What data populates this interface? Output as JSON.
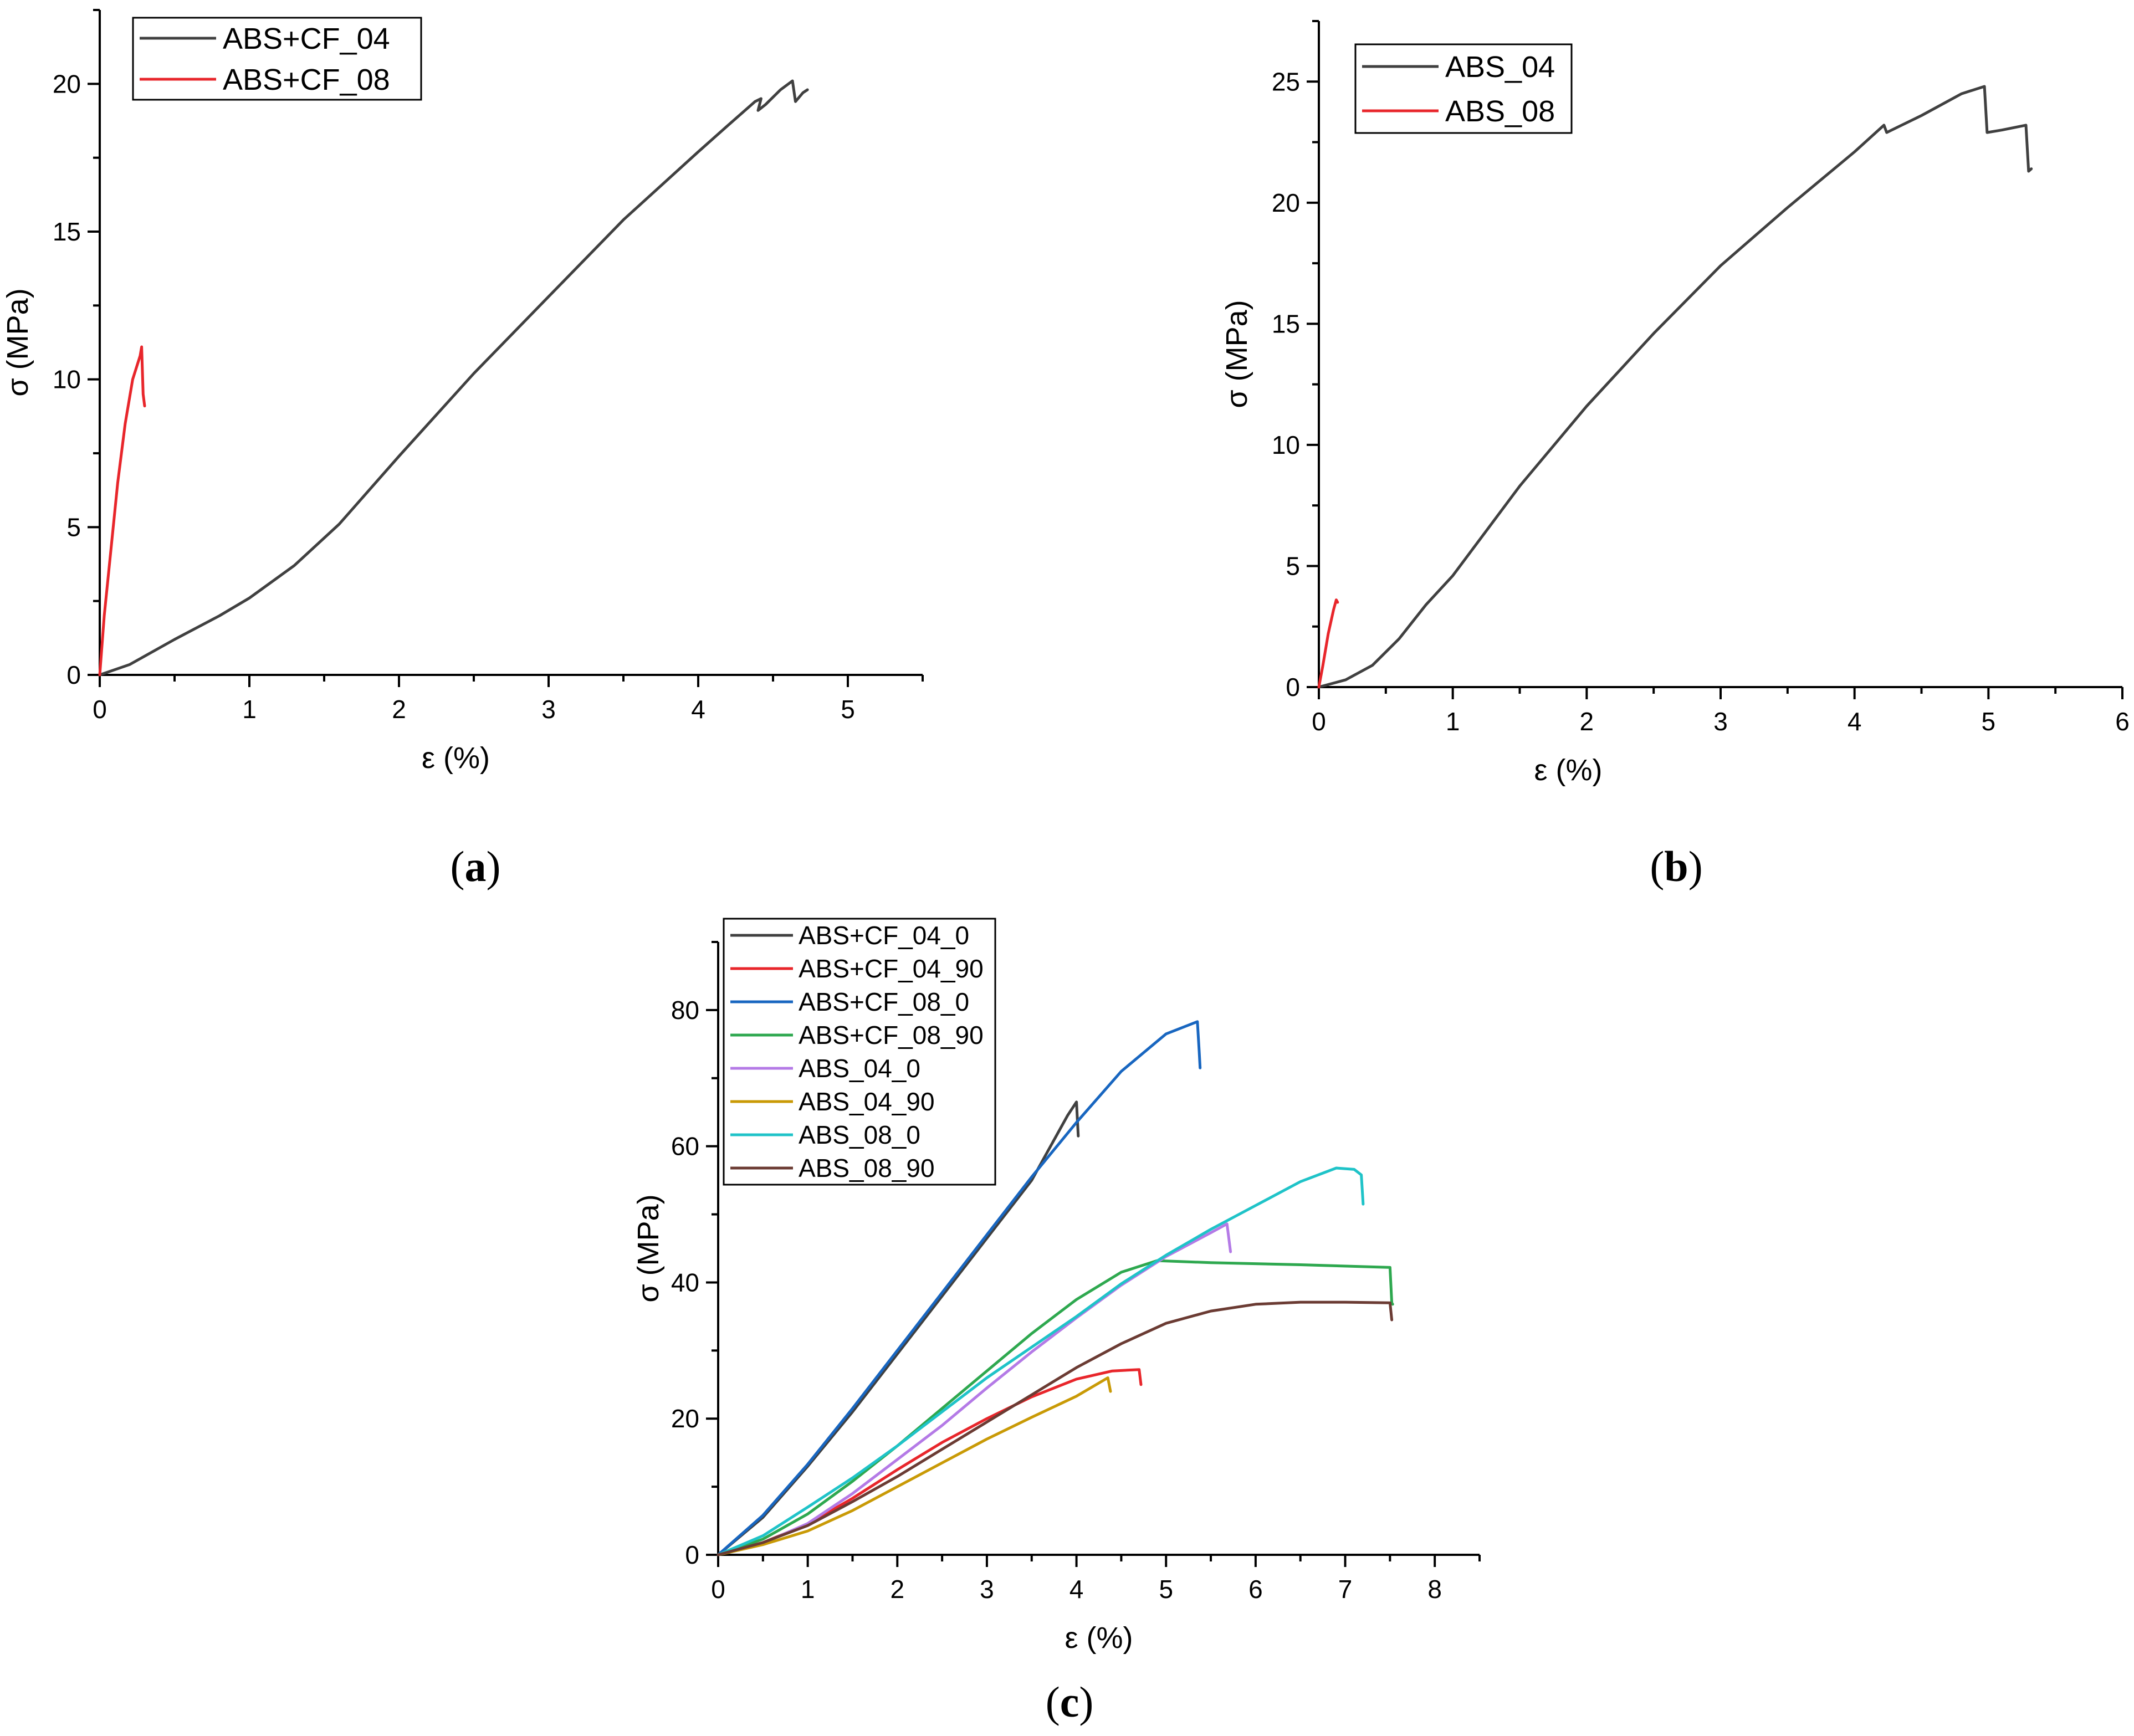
{
  "captions": {
    "a": {
      "open": "(",
      "letter": "a",
      "close": ")"
    },
    "b": {
      "open": "(",
      "letter": "b",
      "close": ")"
    },
    "c": {
      "open": "(",
      "letter": "c",
      "close": ")"
    }
  },
  "colors": {
    "black": "#404040",
    "red": "#e8262b",
    "blue": "#1866c0",
    "green": "#2ea84f",
    "purple": "#b47ae6",
    "gold": "#c99a06",
    "cyan": "#1fc3c8",
    "brown": "#6b3b33"
  },
  "chart_data": [
    {
      "id": "a",
      "type": "line",
      "title": "",
      "xlabel": "ε (%)",
      "ylabel": "σ (MPa)",
      "xlim": [
        0,
        5.5
      ],
      "ylim": [
        0,
        22.5
      ],
      "xticks": [
        0,
        1,
        2,
        3,
        4,
        5
      ],
      "yticks": [
        0,
        5,
        10,
        15,
        20
      ],
      "xtick_labels": [
        "0",
        "1",
        "2",
        "3",
        "4",
        "5"
      ],
      "ytick_labels": [
        "0",
        "5",
        "10",
        "15",
        "20"
      ],
      "legend_position": "top-left",
      "series": [
        {
          "name": "ABS+CF_04",
          "color": "#404040",
          "points": [
            [
              0,
              0
            ],
            [
              0.2,
              0.35
            ],
            [
              0.5,
              1.2
            ],
            [
              0.8,
              2.0
            ],
            [
              1.0,
              2.6
            ],
            [
              1.3,
              3.7
            ],
            [
              1.6,
              5.1
            ],
            [
              2.0,
              7.4
            ],
            [
              2.5,
              10.2
            ],
            [
              3.0,
              12.8
            ],
            [
              3.5,
              15.4
            ],
            [
              4.0,
              17.7
            ],
            [
              4.2,
              18.6
            ],
            [
              4.38,
              19.4
            ],
            [
              4.42,
              19.5
            ],
            [
              4.4,
              19.1
            ],
            [
              4.45,
              19.3
            ],
            [
              4.55,
              19.8
            ],
            [
              4.63,
              20.1
            ],
            [
              4.65,
              19.4
            ],
            [
              4.7,
              19.7
            ],
            [
              4.73,
              19.8
            ]
          ]
        },
        {
          "name": "ABS+CF_08",
          "color": "#e8262b",
          "points": [
            [
              0,
              0
            ],
            [
              0.03,
              2.0
            ],
            [
              0.07,
              4.0
            ],
            [
              0.12,
              6.5
            ],
            [
              0.17,
              8.5
            ],
            [
              0.22,
              10.0
            ],
            [
              0.27,
              10.8
            ],
            [
              0.28,
              11.1
            ],
            [
              0.29,
              9.5
            ],
            [
              0.3,
              9.1
            ]
          ]
        }
      ]
    },
    {
      "id": "b",
      "type": "line",
      "title": "",
      "xlabel": "ε (%)",
      "ylabel": "σ (MPa)",
      "xlim": [
        0,
        6
      ],
      "ylim": [
        0,
        27.5
      ],
      "xticks": [
        0,
        1,
        2,
        3,
        4,
        5,
        6
      ],
      "yticks": [
        0,
        5,
        10,
        15,
        20,
        25
      ],
      "xtick_labels": [
        "0",
        "1",
        "2",
        "3",
        "4",
        "5",
        "6"
      ],
      "ytick_labels": [
        "0",
        "5",
        "10",
        "15",
        "20",
        "25"
      ],
      "legend_position": "top-left",
      "series": [
        {
          "name": "ABS_04",
          "color": "#404040",
          "points": [
            [
              0,
              0
            ],
            [
              0.2,
              0.3
            ],
            [
              0.4,
              0.9
            ],
            [
              0.6,
              2.0
            ],
            [
              0.8,
              3.4
            ],
            [
              1.0,
              4.6
            ],
            [
              1.5,
              8.3
            ],
            [
              2.0,
              11.6
            ],
            [
              2.5,
              14.6
            ],
            [
              3.0,
              17.4
            ],
            [
              3.5,
              19.8
            ],
            [
              4.0,
              22.1
            ],
            [
              4.22,
              23.2
            ],
            [
              4.24,
              22.9
            ],
            [
              4.5,
              23.6
            ],
            [
              4.8,
              24.5
            ],
            [
              4.97,
              24.8
            ],
            [
              4.99,
              22.9
            ],
            [
              5.1,
              23.0
            ],
            [
              5.28,
              23.2
            ],
            [
              5.3,
              21.3
            ],
            [
              5.32,
              21.4
            ]
          ]
        },
        {
          "name": "ABS_08",
          "color": "#e8262b",
          "points": [
            [
              0,
              0
            ],
            [
              0.03,
              0.9
            ],
            [
              0.07,
              2.2
            ],
            [
              0.11,
              3.2
            ],
            [
              0.13,
              3.6
            ],
            [
              0.14,
              3.5
            ]
          ]
        }
      ]
    },
    {
      "id": "c",
      "type": "line",
      "title": "",
      "xlabel": "ε (%)",
      "ylabel": "σ (MPa)",
      "xlim": [
        0,
        8.5
      ],
      "ylim": [
        0,
        90
      ],
      "xticks": [
        0,
        1,
        2,
        3,
        4,
        5,
        6,
        7,
        8
      ],
      "yticks": [
        0,
        20,
        40,
        60,
        80
      ],
      "xtick_labels": [
        "0",
        "1",
        "2",
        "3",
        "4",
        "5",
        "6",
        "7",
        "8"
      ],
      "ytick_labels": [
        "0",
        "20",
        "40",
        "60",
        "80"
      ],
      "legend_position": "top-left",
      "series": [
        {
          "name": "ABS+CF_04_0",
          "color": "#404040",
          "points": [
            [
              0,
              0
            ],
            [
              0.5,
              5.5
            ],
            [
              1,
              13
            ],
            [
              1.5,
              21
            ],
            [
              2,
              29.5
            ],
            [
              2.5,
              38
            ],
            [
              3,
              46.5
            ],
            [
              3.5,
              55
            ],
            [
              3.9,
              64.5
            ],
            [
              4.0,
              66.5
            ],
            [
              4.02,
              61.5
            ]
          ]
        },
        {
          "name": "ABS+CF_04_90",
          "color": "#e8262b",
          "points": [
            [
              0,
              0
            ],
            [
              0.5,
              1.8
            ],
            [
              1,
              4.5
            ],
            [
              1.5,
              8.3
            ],
            [
              2,
              12.5
            ],
            [
              2.5,
              16.5
            ],
            [
              3,
              20
            ],
            [
              3.5,
              23.2
            ],
            [
              4,
              25.8
            ],
            [
              4.4,
              27
            ],
            [
              4.7,
              27.2
            ],
            [
              4.72,
              25.0
            ]
          ]
        },
        {
          "name": "ABS+CF_08_0",
          "color": "#1866c0",
          "points": [
            [
              0,
              0
            ],
            [
              0.5,
              5.8
            ],
            [
              1,
              13.3
            ],
            [
              1.5,
              21.5
            ],
            [
              2,
              30
            ],
            [
              2.5,
              38.5
            ],
            [
              3,
              47
            ],
            [
              3.5,
              55.5
            ],
            [
              4,
              63.5
            ],
            [
              4.5,
              71
            ],
            [
              5,
              76.5
            ],
            [
              5.35,
              78.3
            ],
            [
              5.37,
              74
            ],
            [
              5.38,
              71.5
            ]
          ]
        },
        {
          "name": "ABS+CF_08_90",
          "color": "#2ea84f",
          "points": [
            [
              0,
              0
            ],
            [
              0.5,
              2.3
            ],
            [
              1,
              6
            ],
            [
              1.5,
              10.8
            ],
            [
              2,
              16
            ],
            [
              2.5,
              21.5
            ],
            [
              3,
              27
            ],
            [
              3.5,
              32.5
            ],
            [
              4,
              37.5
            ],
            [
              4.5,
              41.5
            ],
            [
              4.9,
              43.2
            ],
            [
              5.5,
              42.9
            ],
            [
              6.5,
              42.6
            ],
            [
              7.5,
              42.2
            ],
            [
              7.52,
              37.0
            ],
            [
              7.53,
              36.8
            ]
          ]
        },
        {
          "name": "ABS_04_0",
          "color": "#b47ae6",
          "points": [
            [
              0,
              0
            ],
            [
              0.5,
              1.7
            ],
            [
              1,
              4.6
            ],
            [
              1.5,
              9.0
            ],
            [
              2,
              14
            ],
            [
              2.5,
              19
            ],
            [
              3,
              24.5
            ],
            [
              3.5,
              29.8
            ],
            [
              4,
              34.8
            ],
            [
              4.5,
              39.6
            ],
            [
              5,
              43.8
            ],
            [
              5.5,
              47.3
            ],
            [
              5.68,
              48.6
            ],
            [
              5.72,
              44.5
            ]
          ]
        },
        {
          "name": "ABS_04_90",
          "color": "#c99a06",
          "points": [
            [
              0,
              0
            ],
            [
              0.5,
              1.5
            ],
            [
              1,
              3.5
            ],
            [
              1.5,
              6.5
            ],
            [
              2,
              10
            ],
            [
              2.5,
              13.5
            ],
            [
              3,
              17
            ],
            [
              3.5,
              20.2
            ],
            [
              4,
              23.3
            ],
            [
              4.35,
              26.0
            ],
            [
              4.38,
              24.0
            ]
          ]
        },
        {
          "name": "ABS_08_0",
          "color": "#1fc3c8",
          "points": [
            [
              0,
              0
            ],
            [
              0.5,
              2.8
            ],
            [
              1,
              7
            ],
            [
              1.5,
              11.3
            ],
            [
              2,
              16
            ],
            [
              2.5,
              21
            ],
            [
              3,
              26
            ],
            [
              3.5,
              30.5
            ],
            [
              4,
              35
            ],
            [
              4.5,
              39.8
            ],
            [
              5,
              44
            ],
            [
              5.5,
              47.8
            ],
            [
              6,
              51.3
            ],
            [
              6.5,
              54.8
            ],
            [
              6.9,
              56.8
            ],
            [
              7.1,
              56.6
            ],
            [
              7.18,
              55.8
            ],
            [
              7.2,
              51.5
            ]
          ]
        },
        {
          "name": "ABS_08_90",
          "color": "#6b3b33",
          "points": [
            [
              0,
              0
            ],
            [
              0.5,
              1.8
            ],
            [
              1,
              4.3
            ],
            [
              1.5,
              7.8
            ],
            [
              2,
              11.5
            ],
            [
              2.5,
              15.5
            ],
            [
              3,
              19.5
            ],
            [
              3.5,
              23.5
            ],
            [
              4,
              27.5
            ],
            [
              4.5,
              31
            ],
            [
              5,
              34
            ],
            [
              5.5,
              35.8
            ],
            [
              6,
              36.8
            ],
            [
              6.5,
              37.1
            ],
            [
              7,
              37.1
            ],
            [
              7.5,
              37.0
            ],
            [
              7.52,
              34.5
            ]
          ]
        }
      ]
    }
  ]
}
